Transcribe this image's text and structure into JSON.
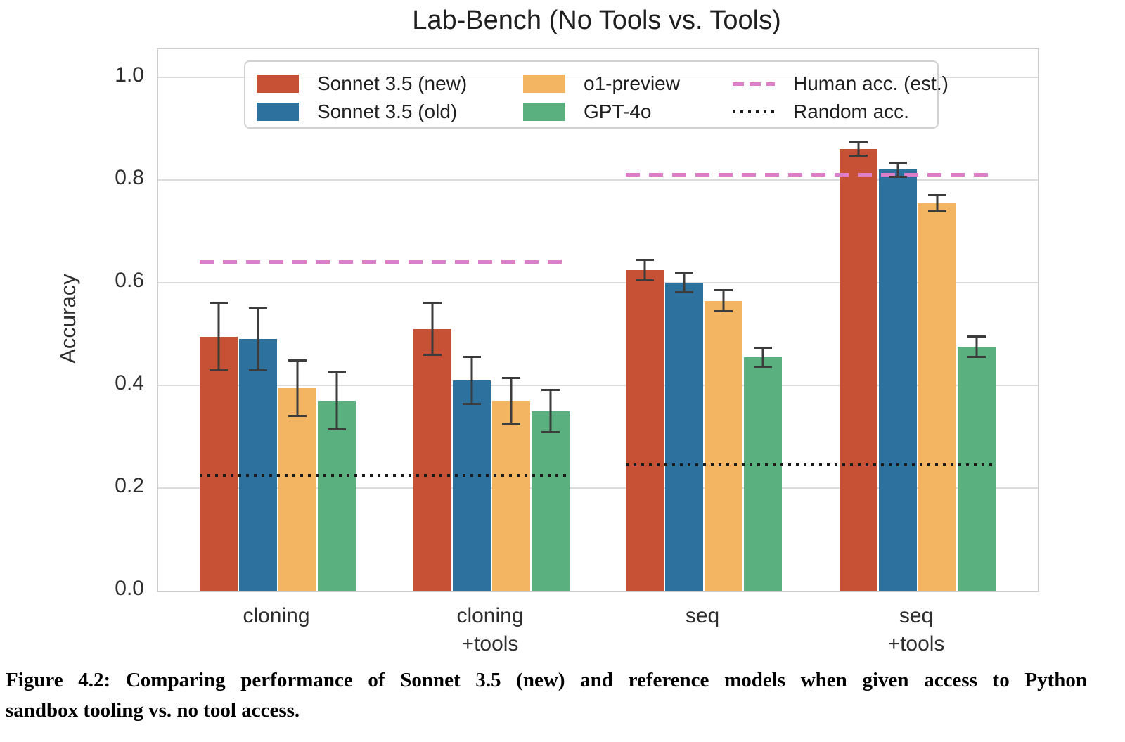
{
  "figure": {
    "caption_lines": [
      "Figure 4.2: Comparing performance of Sonnet 3.5 (new) and reference models when given access to Python",
      "sandbox tooling vs. no tool access."
    ]
  },
  "chart_data": {
    "type": "bar",
    "title": "Lab-Bench (No Tools vs. Tools)",
    "ylabel": "Accuracy",
    "ylim": [
      0.0,
      1.055
    ],
    "yticks": [
      "0.0",
      "0.2",
      "0.4",
      "0.6",
      "0.8",
      "1.0"
    ],
    "grid": "horizontal",
    "categories": [
      "cloning",
      "cloning\n+tools",
      "seq",
      "seq\n+tools"
    ],
    "series": [
      {
        "name": "Sonnet 3.5 (new)",
        "color": "#c75135",
        "values": [
          0.495,
          0.51,
          0.625,
          0.86
        ],
        "errors": [
          0.068,
          0.053,
          0.022,
          0.015
        ]
      },
      {
        "name": "Sonnet 3.5 (old)",
        "color": "#2d729e",
        "values": [
          0.49,
          0.41,
          0.6,
          0.82
        ],
        "errors": [
          0.062,
          0.048,
          0.02,
          0.016
        ]
      },
      {
        "name": "o1-preview",
        "color": "#f3b561",
        "values": [
          0.395,
          0.37,
          0.565,
          0.755
        ],
        "errors": [
          0.056,
          0.047,
          0.022,
          0.018
        ]
      },
      {
        "name": "GPT-4o",
        "color": "#5bb07f",
        "values": [
          0.37,
          0.35,
          0.455,
          0.475
        ],
        "errors": [
          0.057,
          0.043,
          0.021,
          0.022
        ]
      }
    ],
    "reference_lines": [
      {
        "name": "Human acc. (est.)",
        "style": "dashed",
        "color": "#dc7ec8",
        "segments": [
          {
            "from_group": 0,
            "to_group": 1,
            "value": 0.64
          },
          {
            "from_group": 2,
            "to_group": 3,
            "value": 0.81
          }
        ]
      },
      {
        "name": "Random acc.",
        "style": "dotted",
        "color": "#1a1a1a",
        "segments": [
          {
            "from_group": 0,
            "to_group": 1,
            "value": 0.225
          },
          {
            "from_group": 2,
            "to_group": 3,
            "value": 0.245
          }
        ]
      }
    ],
    "legend_position": "upper center"
  }
}
